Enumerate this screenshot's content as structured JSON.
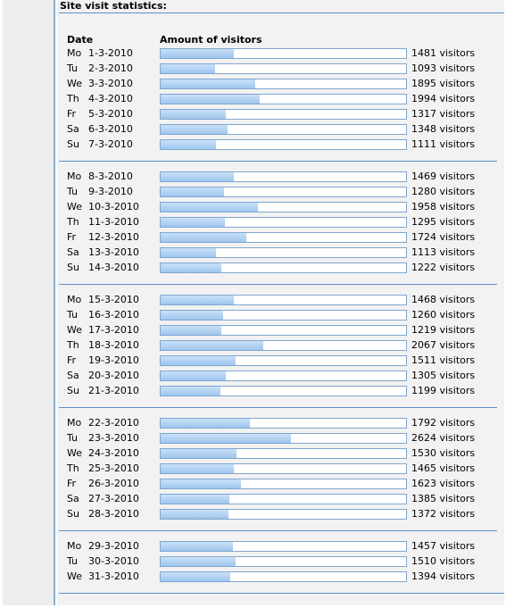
{
  "title": "Site visit statistics:",
  "headers": {
    "date": "Date",
    "amount": "Amount of visitors"
  },
  "weeks": [
    {
      "rows": [
        {
          "day": "Mo",
          "date": "1-3-2010",
          "visitors": 1481,
          "label": "1481 visitors"
        },
        {
          "day": "Tu",
          "date": "2-3-2010",
          "visitors": 1093,
          "label": "1093 visitors"
        },
        {
          "day": "We",
          "date": "3-3-2010",
          "visitors": 1895,
          "label": "1895 visitors"
        },
        {
          "day": "Th",
          "date": "4-3-2010",
          "visitors": 1994,
          "label": "1994 visitors"
        },
        {
          "day": "Fr",
          "date": "5-3-2010",
          "visitors": 1317,
          "label": "1317 visitors"
        },
        {
          "day": "Sa",
          "date": "6-3-2010",
          "visitors": 1348,
          "label": "1348 visitors"
        },
        {
          "day": "Su",
          "date": "7-3-2010",
          "visitors": 1111,
          "label": "1111 visitors"
        }
      ]
    },
    {
      "rows": [
        {
          "day": "Mo",
          "date": "8-3-2010",
          "visitors": 1469,
          "label": "1469 visitors"
        },
        {
          "day": "Tu",
          "date": "9-3-2010",
          "visitors": 1280,
          "label": "1280 visitors"
        },
        {
          "day": "We",
          "date": "10-3-2010",
          "visitors": 1958,
          "label": "1958 visitors"
        },
        {
          "day": "Th",
          "date": "11-3-2010",
          "visitors": 1295,
          "label": "1295 visitors"
        },
        {
          "day": "Fr",
          "date": "12-3-2010",
          "visitors": 1724,
          "label": "1724 visitors"
        },
        {
          "day": "Sa",
          "date": "13-3-2010",
          "visitors": 1113,
          "label": "1113 visitors"
        },
        {
          "day": "Su",
          "date": "14-3-2010",
          "visitors": 1222,
          "label": "1222 visitors"
        }
      ]
    },
    {
      "rows": [
        {
          "day": "Mo",
          "date": "15-3-2010",
          "visitors": 1468,
          "label": "1468 visitors"
        },
        {
          "day": "Tu",
          "date": "16-3-2010",
          "visitors": 1260,
          "label": "1260 visitors"
        },
        {
          "day": "We",
          "date": "17-3-2010",
          "visitors": 1219,
          "label": "1219 visitors"
        },
        {
          "day": "Th",
          "date": "18-3-2010",
          "visitors": 2067,
          "label": "2067 visitors"
        },
        {
          "day": "Fr",
          "date": "19-3-2010",
          "visitors": 1511,
          "label": "1511 visitors"
        },
        {
          "day": "Sa",
          "date": "20-3-2010",
          "visitors": 1305,
          "label": "1305 visitors"
        },
        {
          "day": "Su",
          "date": "21-3-2010",
          "visitors": 1199,
          "label": "1199 visitors"
        }
      ]
    },
    {
      "rows": [
        {
          "day": "Mo",
          "date": "22-3-2010",
          "visitors": 1792,
          "label": "1792 visitors"
        },
        {
          "day": "Tu",
          "date": "23-3-2010",
          "visitors": 2624,
          "label": "2624 visitors"
        },
        {
          "day": "We",
          "date": "24-3-2010",
          "visitors": 1530,
          "label": "1530 visitors"
        },
        {
          "day": "Th",
          "date": "25-3-2010",
          "visitors": 1465,
          "label": "1465 visitors"
        },
        {
          "day": "Fr",
          "date": "26-3-2010",
          "visitors": 1623,
          "label": "1623 visitors"
        },
        {
          "day": "Sa",
          "date": "27-3-2010",
          "visitors": 1385,
          "label": "1385 visitors"
        },
        {
          "day": "Su",
          "date": "28-3-2010",
          "visitors": 1372,
          "label": "1372 visitors"
        }
      ]
    },
    {
      "rows": [
        {
          "day": "Mo",
          "date": "29-3-2010",
          "visitors": 1457,
          "label": "1457 visitors"
        },
        {
          "day": "Tu",
          "date": "30-3-2010",
          "visitors": 1510,
          "label": "1510 visitors"
        },
        {
          "day": "We",
          "date": "31-3-2010",
          "visitors": 1394,
          "label": "1394 visitors"
        }
      ]
    }
  ]
}
